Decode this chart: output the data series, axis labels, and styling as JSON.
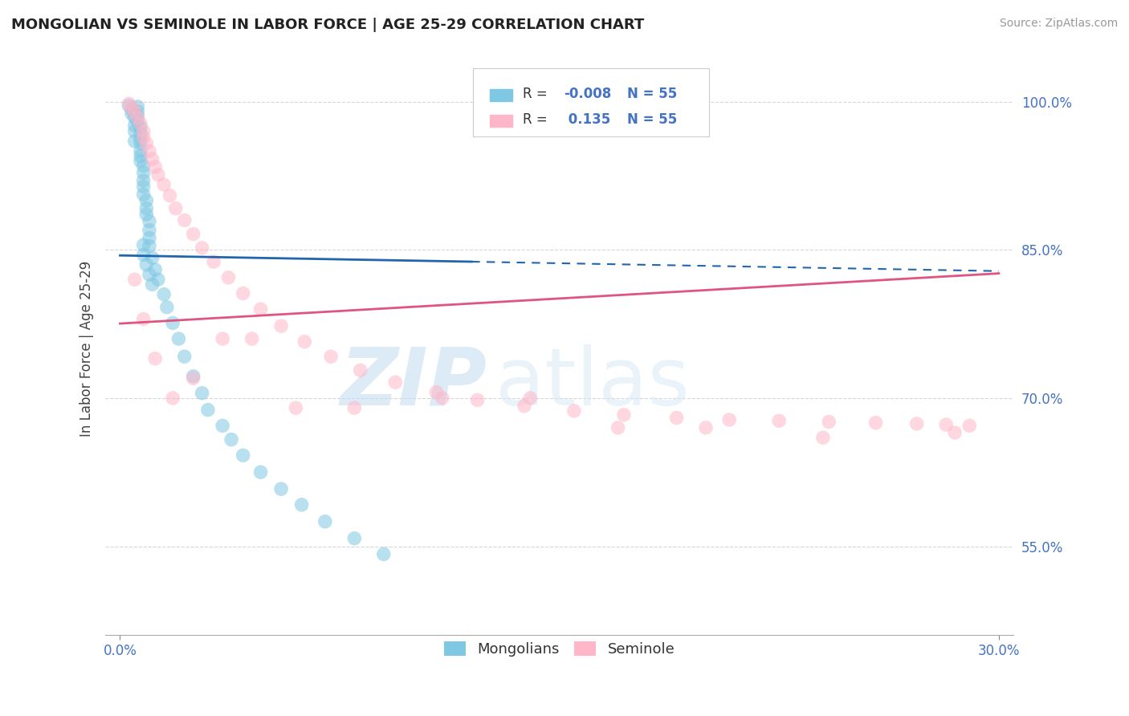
{
  "title": "MONGOLIAN VS SEMINOLE IN LABOR FORCE | AGE 25-29 CORRELATION CHART",
  "source": "Source: ZipAtlas.com",
  "ylabel_label": "In Labor Force | Age 25-29",
  "xlim": [
    -0.005,
    0.305
  ],
  "ylim": [
    0.46,
    1.04
  ],
  "yticks": [
    0.55,
    0.7,
    0.85,
    1.0
  ],
  "ytick_labels": [
    "55.0%",
    "70.0%",
    "85.0%",
    "100.0%"
  ],
  "xtick_vals": [
    0.0,
    0.3
  ],
  "xtick_labels": [
    "0.0%",
    "30.0%"
  ],
  "legend_labels": [
    "Mongolians",
    "Seminole"
  ],
  "mongolian_color": "#7ec8e3",
  "seminole_color": "#ffb6c8",
  "mongolian_line_color": "#2166ac",
  "seminole_line_color": "#e05580",
  "R_mongolian": -0.008,
  "R_seminole": 0.135,
  "N_mongolian": 55,
  "N_seminole": 55,
  "background_color": "#ffffff",
  "grid_color": "#cccccc",
  "watermark_zip": "ZIP",
  "watermark_atlas": "atlas",
  "mongolian_x": [
    0.001,
    0.001,
    0.002,
    0.002,
    0.003,
    0.003,
    0.003,
    0.003,
    0.004,
    0.004,
    0.004,
    0.004,
    0.004,
    0.005,
    0.005,
    0.005,
    0.005,
    0.005,
    0.005,
    0.005,
    0.005,
    0.006,
    0.006,
    0.006,
    0.006,
    0.007,
    0.007,
    0.007,
    0.007,
    0.008,
    0.008,
    0.008,
    0.009,
    0.009,
    0.01,
    0.01,
    0.01,
    0.011,
    0.012,
    0.013,
    0.014,
    0.015,
    0.016,
    0.018,
    0.02,
    0.022,
    0.025,
    0.028,
    0.032,
    0.038,
    0.045,
    0.055,
    0.065,
    0.075,
    0.09
  ],
  "mongolian_y": [
    0.995,
    0.99,
    0.985,
    0.98,
    0.975,
    0.97,
    0.965,
    0.96,
    0.955,
    0.95,
    0.945,
    0.94,
    0.935,
    0.93,
    0.925,
    0.92,
    0.915,
    0.91,
    0.905,
    0.9,
    0.895,
    0.89,
    0.885,
    0.88,
    0.875,
    0.87,
    0.865,
    0.86,
    0.855,
    0.85,
    0.845,
    0.84,
    0.835,
    0.83,
    0.825,
    0.82,
    0.815,
    0.81,
    0.8,
    0.79,
    0.78,
    0.77,
    0.76,
    0.74,
    0.72,
    0.7,
    0.68,
    0.66,
    0.64,
    0.61,
    0.58,
    0.56,
    0.54,
    0.52,
    0.5
  ],
  "seminole_x": [
    0.001,
    0.002,
    0.003,
    0.004,
    0.005,
    0.006,
    0.007,
    0.008,
    0.009,
    0.01,
    0.012,
    0.013,
    0.014,
    0.015,
    0.017,
    0.019,
    0.022,
    0.025,
    0.028,
    0.032,
    0.038,
    0.045,
    0.055,
    0.065,
    0.075,
    0.085,
    0.095,
    0.11,
    0.125,
    0.14,
    0.155,
    0.17,
    0.185,
    0.2,
    0.215,
    0.23,
    0.245,
    0.26,
    0.275,
    0.285,
    0.002,
    0.004,
    0.006,
    0.008,
    0.01,
    0.015,
    0.02,
    0.03,
    0.05,
    0.07,
    0.1,
    0.15,
    0.2,
    0.25,
    0.29
  ],
  "seminole_y": [
    0.998,
    0.992,
    0.988,
    0.983,
    0.978,
    0.972,
    0.965,
    0.958,
    0.952,
    0.945,
    0.935,
    0.928,
    0.92,
    0.912,
    0.9,
    0.888,
    0.875,
    0.862,
    0.848,
    0.832,
    0.815,
    0.798,
    0.778,
    0.76,
    0.745,
    0.732,
    0.72,
    0.71,
    0.702,
    0.698,
    0.692,
    0.688,
    0.685,
    0.682,
    0.68,
    0.678,
    0.676,
    0.675,
    0.673,
    0.672,
    0.82,
    0.76,
    0.72,
    0.69,
    0.82,
    0.75,
    0.8,
    0.82,
    0.72,
    0.68,
    0.7,
    0.69,
    0.66,
    0.66,
    0.665
  ],
  "title_fontsize": 13,
  "source_fontsize": 10,
  "tick_color": "#4472c4",
  "axis_label_color": "#444444"
}
